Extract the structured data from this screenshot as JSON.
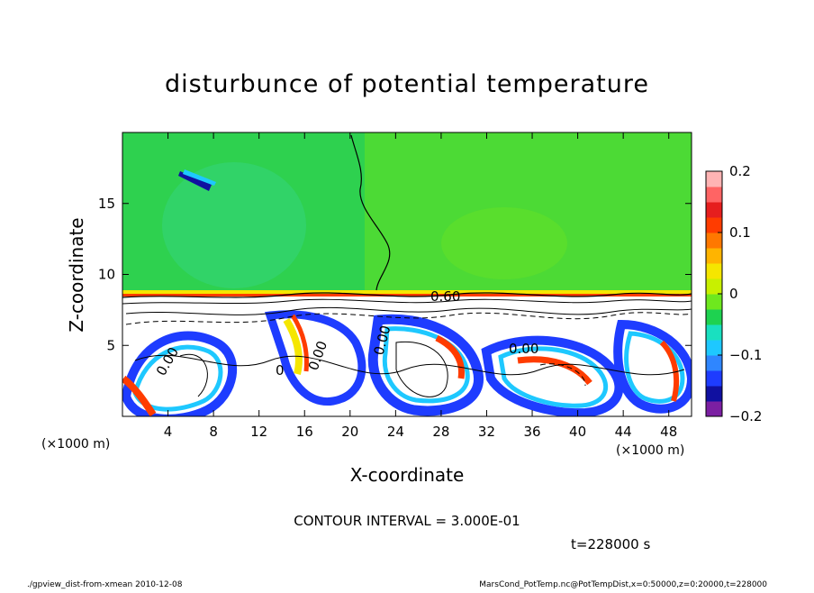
{
  "chart_data": {
    "type": "heatmap",
    "title": "disturbunce of potential temperature",
    "xlabel": "X-coordinate",
    "ylabel": "Z-coordinate",
    "x_unit": "(×1000 m)",
    "y_unit": "(×1000 m)",
    "xlim": [
      0,
      50
    ],
    "ylim": [
      0,
      20
    ],
    "x_ticks": [
      4,
      8,
      12,
      16,
      20,
      24,
      28,
      32,
      36,
      40,
      44,
      48
    ],
    "y_ticks": [
      5,
      10,
      15
    ],
    "colorbar": {
      "min": -0.2,
      "max": 0.2,
      "tick_labels": [
        "0.2",
        "0.1",
        "0",
        "−0.1",
        "−0.2"
      ],
      "tick_values": [
        0.2,
        0.1,
        0,
        -0.1,
        -0.2
      ],
      "colors": [
        "#7b1fa2",
        "#1010a0",
        "#1e3cff",
        "#2f86ff",
        "#1ec8ff",
        "#19e0c0",
        "#1ed250",
        "#6ee81e",
        "#c8f000",
        "#f5e600",
        "#ffb400",
        "#ff7800",
        "#ff3c00",
        "#e61e1e",
        "#ff6464",
        "#ffb4b4"
      ]
    },
    "contour_labels": [
      "0.60",
      "0.00",
      "0.00",
      "0.00",
      "0.00",
      "0"
    ],
    "contour_interval": "CONTOUR INTERVAL = 3.000E-01",
    "time": "t=228000 s",
    "source": "./gpview_dist-from-xmean  2010-12-08",
    "variable": "MarsCond_PotTemp.nc@PotTempDist,x=0:50000,z=0:20000,t=228000"
  }
}
